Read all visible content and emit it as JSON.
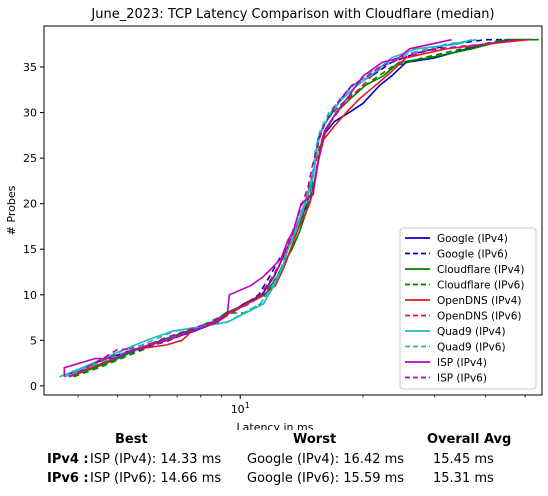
{
  "chart_data": {
    "type": "line",
    "title": "June_2023: TCP Latency Comparison with Cloudflare (median)",
    "xlabel": "Latency in ms",
    "ylabel": "# Probes",
    "xscale": "log",
    "xlim": [
      3.3,
      55
    ],
    "ylim": [
      -1,
      39.5
    ],
    "yticks": [
      0,
      5,
      10,
      15,
      20,
      25,
      30,
      35
    ],
    "xticks": [
      {
        "value": 10,
        "label": "10^1"
      }
    ],
    "x_minor_ticks": [
      4,
      5,
      6,
      7,
      8,
      9,
      20,
      30,
      40,
      50
    ],
    "grid": false,
    "legend_position": "lower right",
    "series": [
      {
        "name": "Google (IPv4)",
        "color": "#0000cc",
        "dash": "solid",
        "points": [
          [
            3.7,
            1
          ],
          [
            4.1,
            2
          ],
          [
            4.7,
            3
          ],
          [
            5.5,
            4
          ],
          [
            6.6,
            5
          ],
          [
            7.7,
            6
          ],
          [
            8.8,
            7
          ],
          [
            9.4,
            8
          ],
          [
            10.2,
            9
          ],
          [
            11.3,
            10
          ],
          [
            12.1,
            12
          ],
          [
            12.7,
            14
          ],
          [
            13.0,
            15
          ],
          [
            13.6,
            17
          ],
          [
            14.2,
            19
          ],
          [
            14.8,
            20
          ],
          [
            15.3,
            23
          ],
          [
            15.7,
            26
          ],
          [
            16.0,
            27.5
          ],
          [
            17.0,
            29
          ],
          [
            18.5,
            30
          ],
          [
            20.0,
            31
          ],
          [
            22.0,
            33
          ],
          [
            23.5,
            34
          ],
          [
            25.5,
            35.5
          ],
          [
            30.0,
            36
          ],
          [
            36.0,
            37
          ],
          [
            46.0,
            38
          ],
          [
            52.0,
            38
          ]
        ]
      },
      {
        "name": "Google (IPv6)",
        "color": "#0000cc",
        "dash": "6,4",
        "points": [
          [
            3.9,
            1
          ],
          [
            4.3,
            2
          ],
          [
            4.9,
            3
          ],
          [
            5.7,
            4
          ],
          [
            6.7,
            5
          ],
          [
            7.6,
            6
          ],
          [
            8.6,
            7
          ],
          [
            9.5,
            8
          ],
          [
            10.3,
            9
          ],
          [
            11.1,
            10
          ],
          [
            11.8,
            12
          ],
          [
            12.5,
            14
          ],
          [
            13.1,
            15
          ],
          [
            13.7,
            17
          ],
          [
            14.3,
            19
          ],
          [
            14.8,
            21
          ],
          [
            15.2,
            24
          ],
          [
            15.5,
            27
          ],
          [
            16.0,
            28.5
          ],
          [
            16.8,
            30
          ],
          [
            17.7,
            31.5
          ],
          [
            18.8,
            33
          ],
          [
            21.0,
            34
          ],
          [
            23.5,
            35.5
          ],
          [
            27.0,
            36.5
          ],
          [
            33.0,
            37.5
          ],
          [
            40.0,
            38
          ],
          [
            46.0,
            38
          ]
        ]
      },
      {
        "name": "Cloudflare (IPv4)",
        "color": "#008000",
        "dash": "solid",
        "points": [
          [
            3.8,
            1
          ],
          [
            4.4,
            2
          ],
          [
            5.0,
            3
          ],
          [
            5.6,
            4
          ],
          [
            6.4,
            5
          ],
          [
            7.4,
            6
          ],
          [
            8.6,
            7
          ],
          [
            9.2,
            8
          ],
          [
            10.4,
            9
          ],
          [
            11.5,
            10
          ],
          [
            12.3,
            12
          ],
          [
            13.0,
            14
          ],
          [
            13.4,
            15
          ],
          [
            14.0,
            17
          ],
          [
            14.5,
            19
          ],
          [
            15.0,
            21
          ],
          [
            15.3,
            23
          ],
          [
            15.7,
            26
          ],
          [
            16.1,
            28
          ],
          [
            17.2,
            30
          ],
          [
            18.6,
            31.5
          ],
          [
            20.3,
            33
          ],
          [
            22.4,
            34
          ],
          [
            24.5,
            35.5
          ],
          [
            29.0,
            36
          ],
          [
            37.0,
            37
          ],
          [
            45.0,
            38
          ],
          [
            54.0,
            38
          ]
        ]
      },
      {
        "name": "Cloudflare (IPv6)",
        "color": "#008000",
        "dash": "6,4",
        "points": [
          [
            3.9,
            1
          ],
          [
            4.5,
            2
          ],
          [
            5.1,
            3
          ],
          [
            5.8,
            4
          ],
          [
            6.6,
            5
          ],
          [
            7.5,
            6
          ],
          [
            8.4,
            7
          ],
          [
            9.3,
            8
          ],
          [
            10.2,
            8
          ],
          [
            11.2,
            9
          ],
          [
            12.0,
            11
          ],
          [
            12.8,
            13
          ],
          [
            13.3,
            15
          ],
          [
            13.8,
            17
          ],
          [
            14.3,
            19
          ],
          [
            14.9,
            21
          ],
          [
            15.2,
            24
          ],
          [
            15.6,
            27
          ],
          [
            16.2,
            29
          ],
          [
            17.3,
            30.5
          ],
          [
            18.8,
            32
          ],
          [
            21.0,
            33.5
          ],
          [
            23.5,
            35
          ],
          [
            28.0,
            36
          ],
          [
            35.0,
            37
          ],
          [
            44.0,
            38
          ],
          [
            52.0,
            38
          ]
        ]
      },
      {
        "name": "OpenDNS (IPv4)",
        "color": "#e41a1a",
        "dash": "solid",
        "points": [
          [
            3.8,
            1
          ],
          [
            4.3,
            2
          ],
          [
            4.9,
            3
          ],
          [
            5.5,
            4
          ],
          [
            6.6,
            4.5
          ],
          [
            7.2,
            5
          ],
          [
            7.6,
            6
          ],
          [
            8.7,
            7
          ],
          [
            9.4,
            8
          ],
          [
            10.3,
            9
          ],
          [
            11.4,
            10
          ],
          [
            12.2,
            11
          ],
          [
            12.8,
            13
          ],
          [
            13.3,
            15
          ],
          [
            13.8,
            17
          ],
          [
            14.3,
            18.5
          ],
          [
            14.8,
            20
          ],
          [
            15.2,
            22
          ],
          [
            15.6,
            25
          ],
          [
            16.0,
            27
          ],
          [
            17.0,
            28.5
          ],
          [
            18.2,
            30
          ],
          [
            19.6,
            31.5
          ],
          [
            21.5,
            33
          ],
          [
            23.5,
            34.5
          ],
          [
            25.5,
            36
          ],
          [
            32.0,
            37
          ],
          [
            40.0,
            37.5
          ],
          [
            51.0,
            38
          ]
        ]
      },
      {
        "name": "OpenDNS (IPv6)",
        "color": "#e41a1a",
        "dash": "6,4",
        "points": [
          [
            3.7,
            1
          ],
          [
            4.2,
            2
          ],
          [
            4.7,
            3
          ],
          [
            5.2,
            4
          ],
          [
            5.8,
            4.5
          ],
          [
            6.6,
            5
          ],
          [
            7.6,
            6
          ],
          [
            8.8,
            7
          ],
          [
            9.5,
            8
          ],
          [
            10.4,
            9
          ],
          [
            11.2,
            10
          ],
          [
            12.0,
            12
          ],
          [
            12.7,
            14
          ],
          [
            13.3,
            16
          ],
          [
            13.9,
            18
          ],
          [
            14.4,
            20
          ],
          [
            14.8,
            22
          ],
          [
            15.2,
            24
          ],
          [
            15.6,
            26
          ],
          [
            16.1,
            28
          ],
          [
            17.0,
            29.5
          ],
          [
            18.0,
            31
          ],
          [
            19.5,
            32.5
          ],
          [
            21.0,
            34
          ],
          [
            23.0,
            35.5
          ],
          [
            26.0,
            36.5
          ],
          [
            31.0,
            37
          ],
          [
            40.0,
            37.5
          ],
          [
            48.0,
            38
          ]
        ]
      },
      {
        "name": "Quad9 (IPv4)",
        "color": "#17bebe",
        "dash": "solid",
        "points": [
          [
            3.6,
            1
          ],
          [
            4.1,
            2
          ],
          [
            4.6,
            3
          ],
          [
            5.2,
            4
          ],
          [
            5.9,
            5
          ],
          [
            6.8,
            6
          ],
          [
            8.0,
            6.5
          ],
          [
            9.3,
            7
          ],
          [
            10.3,
            8
          ],
          [
            11.4,
            9
          ],
          [
            12.1,
            11
          ],
          [
            12.7,
            13
          ],
          [
            13.1,
            15
          ],
          [
            13.7,
            17
          ],
          [
            14.2,
            19
          ],
          [
            14.7,
            21
          ],
          [
            15.1,
            23
          ],
          [
            15.4,
            26
          ],
          [
            15.8,
            28
          ],
          [
            16.7,
            30
          ],
          [
            17.8,
            31.5
          ],
          [
            19.4,
            33
          ],
          [
            21.5,
            34.5
          ],
          [
            23.5,
            36
          ],
          [
            27.0,
            37
          ],
          [
            34.0,
            37.5
          ],
          [
            37.0,
            38
          ]
        ]
      },
      {
        "name": "Quad9 (IPv6)",
        "color": "#17bebe",
        "dash": "6,4",
        "points": [
          [
            3.7,
            1
          ],
          [
            4.2,
            2
          ],
          [
            4.8,
            3
          ],
          [
            5.4,
            4
          ],
          [
            6.1,
            5
          ],
          [
            6.9,
            6
          ],
          [
            8.0,
            6.5
          ],
          [
            9.3,
            7
          ],
          [
            10.2,
            8
          ],
          [
            11.2,
            9
          ],
          [
            12.0,
            11
          ],
          [
            12.6,
            13
          ],
          [
            13.1,
            15
          ],
          [
            13.6,
            17
          ],
          [
            14.1,
            19
          ],
          [
            14.6,
            21
          ],
          [
            15.0,
            23
          ],
          [
            15.3,
            26
          ],
          [
            15.7,
            28
          ],
          [
            16.5,
            30
          ],
          [
            17.6,
            31.5
          ],
          [
            19.0,
            33
          ],
          [
            21.0,
            34.5
          ],
          [
            23.0,
            35.5
          ],
          [
            26.0,
            36.5
          ],
          [
            32.0,
            37.5
          ],
          [
            38.0,
            38
          ]
        ]
      },
      {
        "name": "ISP (IPv4)",
        "color": "#bf00bf",
        "dash": "solid",
        "points": [
          [
            3.7,
            1
          ],
          [
            3.7,
            2
          ],
          [
            4.4,
            3
          ],
          [
            4.9,
            3
          ],
          [
            5.5,
            4
          ],
          [
            6.6,
            5
          ],
          [
            7.6,
            6
          ],
          [
            8.8,
            7
          ],
          [
            9.3,
            8
          ],
          [
            9.4,
            10
          ],
          [
            10.6,
            11
          ],
          [
            11.4,
            12
          ],
          [
            12.0,
            13
          ],
          [
            12.6,
            14
          ],
          [
            13.1,
            16
          ],
          [
            13.5,
            17
          ],
          [
            14.1,
            20
          ],
          [
            15.1,
            21
          ],
          [
            15.4,
            24
          ],
          [
            15.8,
            26
          ],
          [
            16.2,
            28
          ],
          [
            17.2,
            30
          ],
          [
            18.6,
            32
          ],
          [
            20.0,
            34
          ],
          [
            22.3,
            35.5
          ],
          [
            24.5,
            36
          ],
          [
            26.0,
            37
          ],
          [
            33.0,
            38
          ]
        ]
      },
      {
        "name": "ISP (IPv6)",
        "color": "#bf00bf",
        "dash": "6,4",
        "points": [
          [
            3.8,
            1
          ],
          [
            4.2,
            2
          ],
          [
            4.6,
            3
          ],
          [
            5.0,
            4
          ],
          [
            5.6,
            4
          ],
          [
            6.3,
            5
          ],
          [
            7.3,
            6
          ],
          [
            8.5,
            7
          ],
          [
            9.4,
            8
          ],
          [
            10.5,
            9
          ],
          [
            11.4,
            10
          ],
          [
            12.1,
            12
          ],
          [
            12.7,
            14
          ],
          [
            13.2,
            16
          ],
          [
            13.7,
            18
          ],
          [
            14.2,
            20
          ],
          [
            14.7,
            22
          ],
          [
            15.0,
            24
          ],
          [
            15.4,
            26
          ],
          [
            15.8,
            28
          ],
          [
            16.7,
            30
          ],
          [
            17.6,
            31.5
          ],
          [
            18.8,
            33
          ],
          [
            20.5,
            34
          ],
          [
            22.0,
            35
          ],
          [
            25.0,
            36
          ],
          [
            30.0,
            37
          ],
          [
            40.0,
            37.5
          ],
          [
            47.0,
            38
          ]
        ]
      }
    ]
  },
  "summary": {
    "headers": {
      "best": "Best",
      "worst": "Worst",
      "avg": "Overall Avg"
    },
    "rows": [
      {
        "label": "IPv4 :",
        "best": "ISP (IPv4): 14.33 ms",
        "worst": "Google (IPv4): 16.42 ms",
        "avg": "15.45 ms"
      },
      {
        "label": "IPv6 :",
        "best": "ISP (IPv6): 14.66 ms",
        "worst": "Google (IPv6): 15.59 ms",
        "avg": "15.31 ms"
      }
    ]
  }
}
